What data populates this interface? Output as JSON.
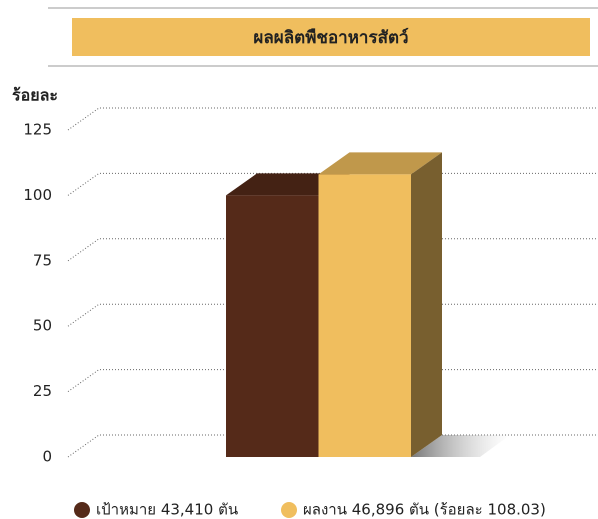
{
  "chart_data": {
    "type": "bar",
    "title": "ผลผลิตพืชอาหารสัตว์",
    "y_label": "ร้อยละ",
    "categories": [
      null
    ],
    "series": [
      {
        "name": "เป้าหมาย 43,410 ตัน",
        "color": "#552a19",
        "values": [
          100
        ]
      },
      {
        "name": "ผลงาน 46,896 ตัน  (ร้อยละ 108.03)",
        "color": "#f0be5e",
        "values": [
          108.03
        ]
      }
    ],
    "ylim": [
      0,
      125
    ],
    "yticks": [
      0,
      25,
      50,
      75,
      100,
      125
    ],
    "grid": true
  }
}
